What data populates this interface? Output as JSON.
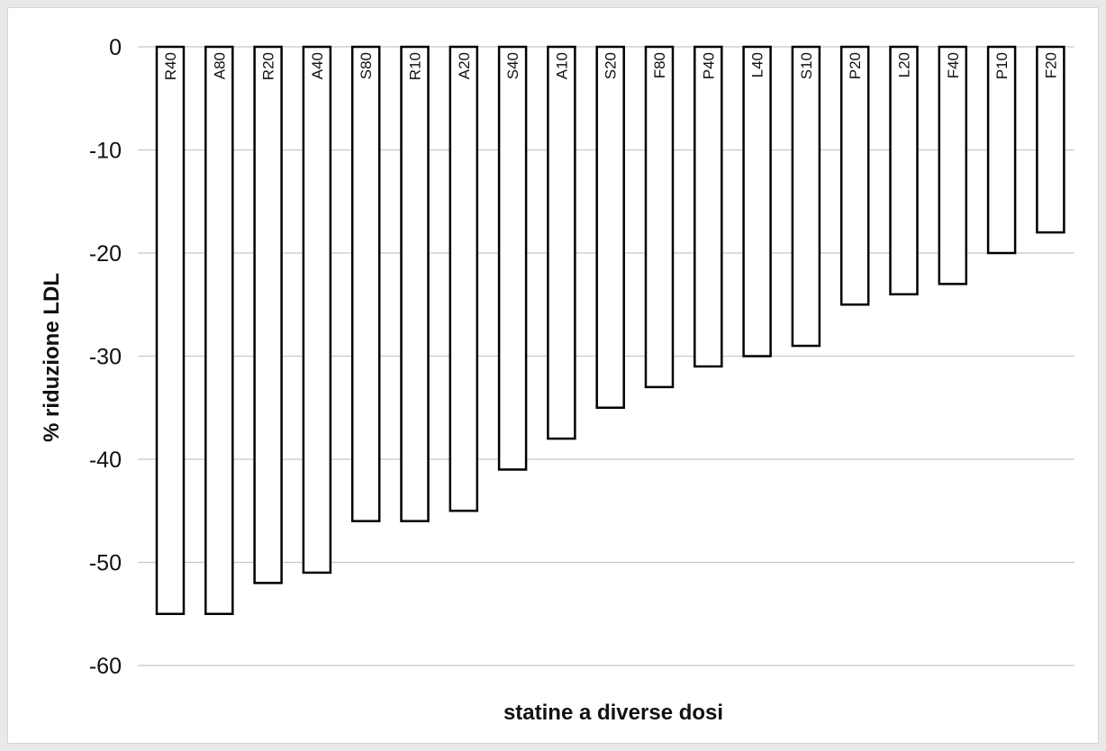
{
  "chart_data": {
    "type": "bar",
    "title": "",
    "xlabel": "statine a diverse dosi",
    "ylabel": "% riduzione LDL",
    "ylim": [
      -60,
      0
    ],
    "yticks": [
      0,
      -10,
      -20,
      -30,
      -40,
      -50,
      -60
    ],
    "grid": true,
    "categories": [
      "R40",
      "A80",
      "R20",
      "A40",
      "S80",
      "R10",
      "A20",
      "S40",
      "A10",
      "S20",
      "F80",
      "P40",
      "L40",
      "S10",
      "P20",
      "L20",
      "F40",
      "P10",
      "F20"
    ],
    "values": [
      -55,
      -55,
      -52,
      -51,
      -46,
      -46,
      -45,
      -41,
      -38,
      -35,
      -33,
      -31,
      -30,
      -29,
      -25,
      -24,
      -23,
      -20,
      -18
    ],
    "colors": {
      "bar_fill": "#ffffff",
      "bar_stroke": "#000000",
      "grid": "#c8c8c8"
    }
  }
}
